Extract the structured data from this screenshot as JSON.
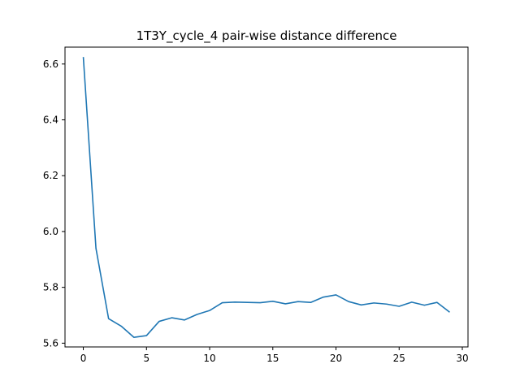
{
  "chart_data": {
    "type": "line",
    "title": "1T3Y_cycle_4 pair-wise distance difference",
    "xlabel": "",
    "ylabel": "",
    "xlim": [
      -1.45,
      30.45
    ],
    "ylim": [
      5.5865,
      6.6605
    ],
    "x_ticks": [
      0,
      5,
      10,
      15,
      20,
      25,
      30
    ],
    "y_ticks": [
      5.6,
      5.8,
      6.0,
      6.2,
      6.4,
      6.6
    ],
    "y_tick_labels": [
      "5.6",
      "5.8",
      "6.0",
      "6.2",
      "6.4",
      "6.6"
    ],
    "grid": false,
    "series": [
      {
        "color": "#1f77b4",
        "x": [
          0,
          1,
          2,
          3,
          4,
          5,
          6,
          7,
          8,
          9,
          10,
          11,
          12,
          13,
          14,
          15,
          16,
          17,
          18,
          19,
          20,
          21,
          22,
          23,
          24,
          25,
          26,
          27,
          28,
          29
        ],
        "values": [
          6.625,
          5.94,
          5.688,
          5.661,
          5.621,
          5.627,
          5.678,
          5.691,
          5.683,
          5.703,
          5.717,
          5.745,
          5.747,
          5.746,
          5.745,
          5.75,
          5.741,
          5.749,
          5.746,
          5.765,
          5.773,
          5.749,
          5.737,
          5.744,
          5.74,
          5.732,
          5.747,
          5.736,
          5.746,
          5.711
        ]
      }
    ]
  }
}
